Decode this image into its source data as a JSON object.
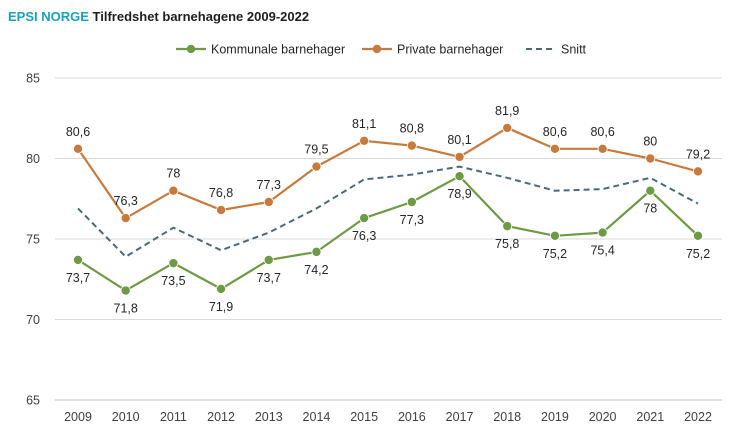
{
  "header": {
    "brand": "EPSI NORGE",
    "title": "Tilfredshet barnehagene 2009-2022"
  },
  "colors": {
    "kommunale": "#6f9a45",
    "private": "#c87a3e",
    "snitt": "#4a6a78",
    "grid": "#d9d9d9",
    "axis": "#bfbfbf"
  },
  "chart_data": {
    "type": "line",
    "title": "Tilfredshet barnehagene 2009-2022",
    "xlabel": "",
    "ylabel": "",
    "x": [
      "2009",
      "2010",
      "2011",
      "2012",
      "2013",
      "2014",
      "2015",
      "2016",
      "2017",
      "2018",
      "2019",
      "2020",
      "2021",
      "2022"
    ],
    "ylim": [
      65,
      85
    ],
    "yticks": [
      65,
      70,
      75,
      80,
      85
    ],
    "grid": true,
    "legend_position": "top-center",
    "series": [
      {
        "key": "kommunale",
        "name": "Kommunale barnehager",
        "style": "solid-marker",
        "values": [
          73.7,
          71.8,
          73.5,
          71.9,
          73.7,
          74.2,
          76.3,
          77.3,
          78.9,
          75.8,
          75.2,
          75.4,
          78.0,
          75.2
        ],
        "labels": [
          "73,7",
          "71,8",
          "73,5",
          "71,9",
          "73,7",
          "74,2",
          "76,3",
          "77,3",
          "78,9",
          "75,8",
          "75,2",
          "75,4",
          "78",
          "75,2"
        ],
        "label_position": "below"
      },
      {
        "key": "private",
        "name": "Private barnehager",
        "style": "solid-marker",
        "values": [
          80.6,
          76.3,
          78.0,
          76.8,
          77.3,
          79.5,
          81.1,
          80.8,
          80.1,
          81.9,
          80.6,
          80.6,
          80.0,
          79.2
        ],
        "labels": [
          "80,6",
          "76,3",
          "78",
          "76,8",
          "77,3",
          "79,5",
          "81,1",
          "80,8",
          "80,1",
          "81,9",
          "80,6",
          "80,6",
          "80",
          "79,2"
        ],
        "label_position": "above"
      },
      {
        "key": "snitt",
        "name": "Snitt",
        "style": "dashed",
        "values": [
          76.9,
          73.9,
          75.7,
          74.3,
          75.4,
          76.9,
          78.7,
          79.0,
          79.5,
          78.8,
          78.0,
          78.1,
          78.8,
          77.2
        ],
        "labels": [],
        "label_position": "none"
      }
    ]
  }
}
